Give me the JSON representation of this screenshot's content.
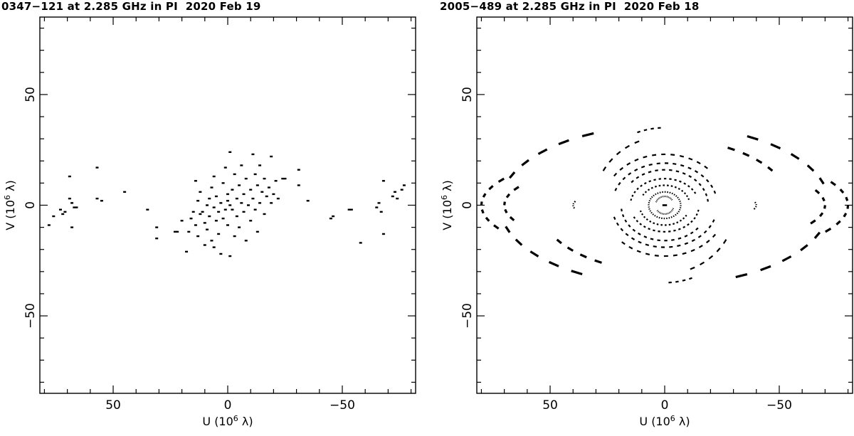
{
  "chart_data": [
    {
      "type": "scatter",
      "title": "0347−121 at 2.285 GHz in PI  2020 Feb 19",
      "xlabel": "U (10⁶ λ)",
      "ylabel": "V (10⁶ λ)",
      "xlim": [
        82,
        -82
      ],
      "ylim": [
        -85,
        85
      ],
      "xticks": [
        50,
        0,
        -50
      ],
      "yticks": [
        50,
        0,
        -50
      ],
      "xtick_labels": [
        "50",
        "0",
        "−50"
      ],
      "ytick_labels": [
        "50",
        "0",
        "−50"
      ],
      "grid": false,
      "marker": "dash",
      "points": [
        [
          78,
          -9
        ],
        [
          76,
          -5
        ],
        [
          73,
          -2
        ],
        [
          72,
          -4
        ],
        [
          71,
          -3
        ],
        [
          69,
          13
        ],
        [
          69,
          3
        ],
        [
          68,
          1
        ],
        [
          68,
          -10
        ],
        [
          67,
          -1
        ],
        [
          66,
          -1
        ],
        [
          57,
          17
        ],
        [
          57,
          3
        ],
        [
          55,
          2
        ],
        [
          45,
          6
        ],
        [
          35,
          -2
        ],
        [
          31,
          -10
        ],
        [
          31,
          -15
        ],
        [
          23,
          -12
        ],
        [
          22,
          -12
        ],
        [
          20,
          -7
        ],
        [
          18,
          -21
        ],
        [
          17,
          -12
        ],
        [
          16,
          -6
        ],
        [
          15,
          -3
        ],
        [
          14,
          -9
        ],
        [
          14,
          11
        ],
        [
          13,
          2
        ],
        [
          13,
          -14
        ],
        [
          12,
          -4
        ],
        [
          12,
          6
        ],
        [
          11,
          -3
        ],
        [
          10,
          -18
        ],
        [
          10,
          -8
        ],
        [
          9,
          0
        ],
        [
          9,
          -11
        ],
        [
          8,
          3
        ],
        [
          8,
          -5
        ],
        [
          7,
          -16
        ],
        [
          7,
          8
        ],
        [
          6,
          -1
        ],
        [
          6,
          -19
        ],
        [
          6,
          13
        ],
        [
          5,
          -7
        ],
        [
          5,
          4
        ],
        [
          4,
          -3
        ],
        [
          4,
          -13
        ],
        [
          3,
          1
        ],
        [
          3,
          -22
        ],
        [
          2,
          10
        ],
        [
          2,
          -6
        ],
        [
          1,
          -2
        ],
        [
          1,
          17
        ],
        [
          0,
          5
        ],
        [
          0,
          -9
        ],
        [
          0,
          2
        ],
        [
          -1,
          0
        ],
        [
          -1,
          24
        ],
        [
          -1,
          -23
        ],
        [
          -2,
          -2
        ],
        [
          -2,
          7
        ],
        [
          -3,
          14
        ],
        [
          -3,
          -14
        ],
        [
          -4,
          3
        ],
        [
          -4,
          -5
        ],
        [
          -5,
          9
        ],
        [
          -5,
          -10
        ],
        [
          -6,
          1
        ],
        [
          -6,
          18
        ],
        [
          -7,
          -3
        ],
        [
          -7,
          5
        ],
        [
          -8,
          12
        ],
        [
          -8,
          -16
        ],
        [
          -9,
          0
        ],
        [
          -10,
          7
        ],
        [
          -10,
          -7
        ],
        [
          -11,
          3
        ],
        [
          -11,
          23
        ],
        [
          -12,
          14
        ],
        [
          -12,
          -2
        ],
        [
          -13,
          9
        ],
        [
          -13,
          -12
        ],
        [
          -14,
          1
        ],
        [
          -14,
          18
        ],
        [
          -15,
          6
        ],
        [
          -16,
          -4
        ],
        [
          -16,
          12
        ],
        [
          -17,
          4
        ],
        [
          -18,
          8
        ],
        [
          -19,
          1
        ],
        [
          -19,
          22
        ],
        [
          -20,
          5
        ],
        [
          -21,
          11
        ],
        [
          -22,
          3
        ],
        [
          -24,
          12
        ],
        [
          -25,
          12
        ],
        [
          -31,
          16
        ],
        [
          -31,
          9
        ],
        [
          -35,
          2
        ],
        [
          -45,
          -6
        ],
        [
          -46,
          -5
        ],
        [
          -53,
          -2
        ],
        [
          -54,
          -2
        ],
        [
          -58,
          -17
        ],
        [
          -65,
          -1
        ],
        [
          -66,
          1
        ],
        [
          -67,
          -3
        ],
        [
          -68,
          11
        ],
        [
          -68,
          -13
        ],
        [
          -72,
          4
        ],
        [
          -73,
          6
        ],
        [
          -74,
          3
        ],
        [
          -76,
          7
        ],
        [
          -77,
          9
        ]
      ]
    },
    {
      "type": "scatter",
      "title": "2005−489 at 2.285 GHz in PI  2020 Feb 18",
      "xlabel": "U (10⁶ λ)",
      "ylabel": "V (10⁶ λ)",
      "xlim": [
        82,
        -82
      ],
      "ylim": [
        -85,
        85
      ],
      "xticks": [
        50,
        0,
        -50
      ],
      "yticks": [
        50,
        0,
        -50
      ],
      "xtick_labels": [
        "50",
        "0",
        "−50"
      ],
      "ytick_labels": [
        "50",
        "0",
        "−50"
      ],
      "grid": false,
      "marker": "dash-track",
      "tracks": [
        {
          "rx": 35,
          "ry": 35,
          "t0": 70,
          "t1": 85
        },
        {
          "rx": 35,
          "ry": 35,
          "t0": 250,
          "t1": 265
        },
        {
          "rx": 31,
          "ry": 31,
          "t0": 30,
          "t1": 65
        },
        {
          "rx": 31,
          "ry": 31,
          "t0": 210,
          "t1": 245
        },
        {
          "rx": 27,
          "ry": 23,
          "t0": 35,
          "t1": 130
        },
        {
          "rx": 27,
          "ry": 23,
          "t0": 215,
          "t1": 310
        },
        {
          "rx": 23,
          "ry": 19,
          "t0": 20,
          "t1": 160
        },
        {
          "rx": 23,
          "ry": 19,
          "t0": 200,
          "t1": 340
        },
        {
          "rx": 19,
          "ry": 16,
          "t0": 40,
          "t1": 170
        },
        {
          "rx": 19,
          "ry": 16,
          "t0": 220,
          "t1": 350
        },
        {
          "rx": 15,
          "ry": 12,
          "t0": 10,
          "t1": 150
        },
        {
          "rx": 15,
          "ry": 12,
          "t0": 190,
          "t1": 330
        },
        {
          "rx": 11,
          "ry": 9,
          "t0": 30,
          "t1": 160
        },
        {
          "rx": 11,
          "ry": 9,
          "t0": 210,
          "t1": 340
        },
        {
          "rx": 7,
          "ry": 6,
          "t0": 0,
          "t1": 170
        },
        {
          "rx": 7,
          "ry": 6,
          "t0": 180,
          "t1": 350
        },
        {
          "rx": 4,
          "ry": 4,
          "t0": 20,
          "t1": 140
        },
        {
          "rx": 4,
          "ry": 4,
          "t0": 200,
          "t1": 320
        },
        {
          "rx": 80,
          "ry": 25,
          "t0": 155,
          "t1": 205
        },
        {
          "rx": 80,
          "ry": 25,
          "t0": -25,
          "t1": 25
        },
        {
          "rx": 72,
          "ry": 36,
          "t0": 120,
          "t1": 160
        },
        {
          "rx": 72,
          "ry": 36,
          "t0": 200,
          "t1": 240
        },
        {
          "rx": 72,
          "ry": 36,
          "t0": 20,
          "t1": 60
        },
        {
          "rx": 72,
          "ry": 36,
          "t0": -60,
          "t1": -20
        },
        {
          "rx": 70,
          "ry": 20,
          "t0": 160,
          "t1": 200
        },
        {
          "rx": 70,
          "ry": 20,
          "t0": -20,
          "t1": 20
        },
        {
          "rx": 55,
          "ry": 30,
          "t0": 120,
          "t1": 145
        },
        {
          "rx": 55,
          "ry": 30,
          "t0": 300,
          "t1": 325
        },
        {
          "rx": 40,
          "ry": 8,
          "t0": 170,
          "t1": 190
        },
        {
          "rx": 40,
          "ry": 8,
          "t0": -10,
          "t1": 10
        }
      ]
    }
  ]
}
